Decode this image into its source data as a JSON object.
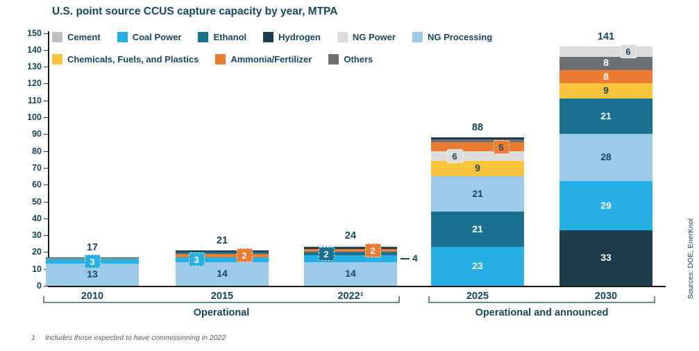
{
  "title": "U.S. point source CCUS capture capacity by year, MTPA",
  "source": "Sources: DOE, EnerKnol",
  "footnote": {
    "marker": "1",
    "text": "Includes those expected to have commissioning in 2022"
  },
  "colors": {
    "text": "#16455c",
    "axis": "#1a1a1a",
    "bracket": "#5f8ba1",
    "footnote_text": "#4e5a63",
    "series": {
      "Cement": "#bdbfc2",
      "Coal Power": "#27b0e5",
      "Ethanol": "#1a7191",
      "Hydrogen": "#1d3d4e",
      "NG Power": "#dcdcda",
      "NG Processing": "#9ccae9",
      "Chemicals, Fuels, and Plastics": "#fcc43d",
      "Ammonia/Fertilizer": "#ec7c32",
      "Others": "#6e7174"
    }
  },
  "legend": {
    "row1": [
      "Cement",
      "Coal Power",
      "Ethanol",
      "Hydrogen",
      "NG Power",
      "NG Processing"
    ],
    "row2": [
      "Chemicals, Fuels, and Plastics",
      "Ammonia/Fertilizer",
      "Others"
    ]
  },
  "chart_data": {
    "type": "bar",
    "stacked": true,
    "title": "U.S. point source CCUS capture capacity by year, MTPA",
    "ylabel": "MTPA",
    "ylim": [
      0,
      150
    ],
    "yticks": [
      0,
      10,
      20,
      30,
      40,
      50,
      60,
      70,
      80,
      90,
      100,
      110,
      120,
      130,
      140,
      150
    ],
    "categories": [
      "2010",
      "2015",
      "2022¹",
      "2025",
      "2030"
    ],
    "totals": [
      "17",
      "21",
      "24",
      "88",
      "141"
    ],
    "groups": [
      {
        "label": "Operational",
        "from": 0,
        "to": 2
      },
      {
        "label": "Operational and announced",
        "from": 3,
        "to": 4
      }
    ],
    "bars": [
      {
        "category": "2010",
        "total": 17,
        "segments": [
          {
            "series": "NG Processing",
            "value": 13,
            "label": "13",
            "label_kind": "plain",
            "label_color": "dark"
          },
          {
            "series": "Coal Power",
            "value": 3,
            "label": "3",
            "label_kind": "badge",
            "label_color": "white",
            "offset": 0
          },
          {
            "series": "Ammonia/Fertilizer",
            "value": 0.5
          },
          {
            "series": "Ethanol",
            "value": 0.5
          }
        ]
      },
      {
        "category": "2015",
        "total": 21,
        "segments": [
          {
            "series": "NG Processing",
            "value": 14,
            "label": "14",
            "label_kind": "plain",
            "label_color": "dark"
          },
          {
            "series": "Coal Power",
            "value": 3,
            "label": "3",
            "label_kind": "badge",
            "label_color": "white",
            "offset": -37
          },
          {
            "series": "Ammonia/Fertilizer",
            "value": 2,
            "label": "2",
            "label_kind": "badge",
            "label_color": "white",
            "offset": 32
          },
          {
            "series": "Ethanol",
            "value": 1
          },
          {
            "series": "Hydrogen",
            "value": 1
          }
        ]
      },
      {
        "category": "2022¹",
        "total": 24,
        "segments": [
          {
            "series": "NG Processing",
            "value": 14,
            "label": "14",
            "label_kind": "plain",
            "label_color": "dark"
          },
          {
            "series": "Coal Power",
            "value": 4,
            "label": "4",
            "label_kind": "leader"
          },
          {
            "series": "Ethanol",
            "value": 2,
            "label": "2",
            "label_kind": "badge",
            "label_color": "white",
            "offset": -35
          },
          {
            "series": "Ammonia/Fertilizer",
            "value": 2,
            "label": "2",
            "label_kind": "badge",
            "label_color": "white",
            "offset": 32
          },
          {
            "series": "Hydrogen",
            "value": 1
          },
          {
            "series": "NG Power",
            "value": 1
          }
        ]
      },
      {
        "category": "2025",
        "total": 88,
        "segments": [
          {
            "series": "Coal Power",
            "value": 23,
            "label": "23",
            "label_kind": "plain",
            "label_color": "white"
          },
          {
            "series": "Ethanol",
            "value": 21,
            "label": "21",
            "label_kind": "plain",
            "label_color": "white"
          },
          {
            "series": "NG Processing",
            "value": 21,
            "label": "21",
            "label_kind": "plain",
            "label_color": "dark"
          },
          {
            "series": "Chemicals, Fuels, and Plastics",
            "value": 9,
            "label": "9",
            "label_kind": "plain",
            "label_color": "dark"
          },
          {
            "series": "NG Power",
            "value": 6,
            "label": "6",
            "label_kind": "badge",
            "label_color": "dark",
            "offset": -33
          },
          {
            "series": "Ammonia/Fertilizer",
            "value": 5,
            "label": "5",
            "label_kind": "badge",
            "label_color": "dark",
            "offset": 34
          },
          {
            "series": "Others",
            "value": 2
          },
          {
            "series": "Hydrogen",
            "value": 1
          }
        ]
      },
      {
        "category": "2030",
        "total": 141,
        "segments": [
          {
            "series": "Hydrogen",
            "value": 33,
            "label": "33",
            "label_kind": "plain",
            "label_color": "white"
          },
          {
            "series": "Coal Power",
            "value": 29,
            "label": "29",
            "label_kind": "plain",
            "label_color": "white"
          },
          {
            "series": "NG Processing",
            "value": 28,
            "label": "28",
            "label_kind": "plain",
            "label_color": "dark"
          },
          {
            "series": "Ethanol",
            "value": 21,
            "label": "21",
            "label_kind": "plain",
            "label_color": "white"
          },
          {
            "series": "Chemicals, Fuels, and Plastics",
            "value": 9,
            "label": "9",
            "label_kind": "plain",
            "label_color": "dark"
          },
          {
            "series": "Ammonia/Fertilizer",
            "value": 8,
            "label": "8",
            "label_kind": "plain",
            "label_color": "white"
          },
          {
            "series": "Others",
            "value": 8,
            "label": "8",
            "label_kind": "plain",
            "label_color": "white"
          },
          {
            "series": "NG Power",
            "value": 6,
            "label": "6",
            "label_kind": "badge",
            "label_color": "dark",
            "offset": 32
          }
        ]
      }
    ]
  }
}
